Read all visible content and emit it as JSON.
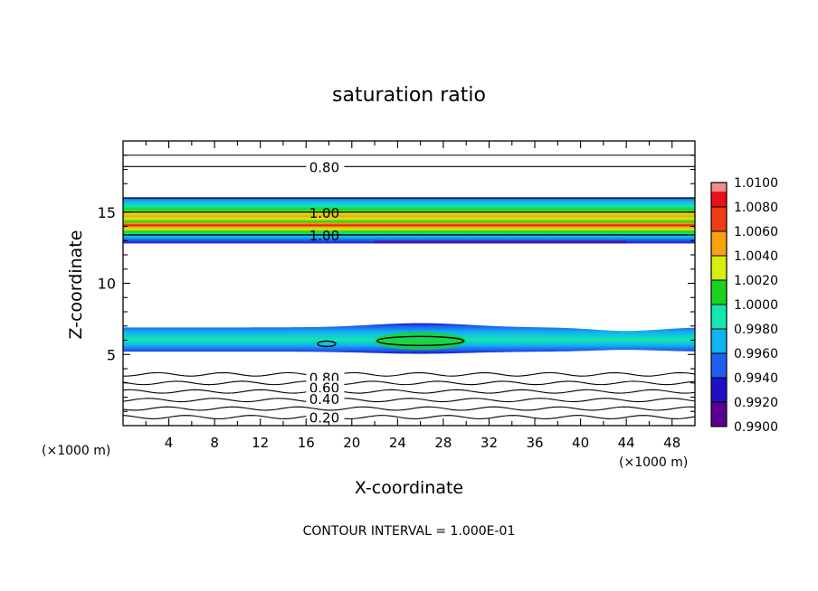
{
  "chart_data": {
    "type": "heatmap",
    "title": "saturation ratio",
    "xlabel": "X-coordinate",
    "ylabel": "Z-coordinate",
    "x_unit_left": "(×1000 m)",
    "x_unit_right": "(×1000 m)",
    "footer": "CONTOUR INTERVAL = 1.000E-01",
    "xlim": [
      0,
      50
    ],
    "ylim": [
      0,
      20
    ],
    "xticks": [
      4,
      8,
      12,
      16,
      20,
      24,
      28,
      32,
      36,
      40,
      44,
      48
    ],
    "yticks": [
      5,
      10,
      15
    ],
    "grid": false,
    "colorbar": {
      "levels": [
        "0.9900",
        "0.9920",
        "0.9940",
        "0.9960",
        "0.9980",
        "1.0000",
        "1.0020",
        "1.0040",
        "1.0060",
        "1.0080",
        "1.0100"
      ],
      "colors": [
        "#5a0090",
        "#1f10c8",
        "#1e5ef0",
        "#11b4ee",
        "#13e6b0",
        "#19d41e",
        "#d6ee10",
        "#f8a210",
        "#f23c14",
        "#e7121c",
        "#f18b8b"
      ]
    },
    "contour_labels": [
      {
        "text": "0.80",
        "x": 17.6,
        "z": 18.2
      },
      {
        "text": "1.00",
        "x": 17.6,
        "z": 15.0
      },
      {
        "text": "1.00",
        "x": 17.6,
        "z": 13.4
      },
      {
        "text": "0.80",
        "x": 17.6,
        "z": 3.4
      },
      {
        "text": "0.60",
        "x": 17.6,
        "z": 2.7
      },
      {
        "text": "0.40",
        "x": 17.6,
        "z": 1.9
      },
      {
        "text": "0.20",
        "x": 17.6,
        "z": 0.6
      }
    ],
    "contour_lines_z": [
      0.6,
      1.2,
      1.8,
      2.4,
      3.0,
      3.6,
      18.2,
      19.0
    ],
    "bands": [
      {
        "name": "upper",
        "z_bottom": 12.8,
        "z_top": 16.0
      },
      {
        "name": "lower",
        "z_bottom": 5.2,
        "z_top": 6.9
      }
    ]
  }
}
